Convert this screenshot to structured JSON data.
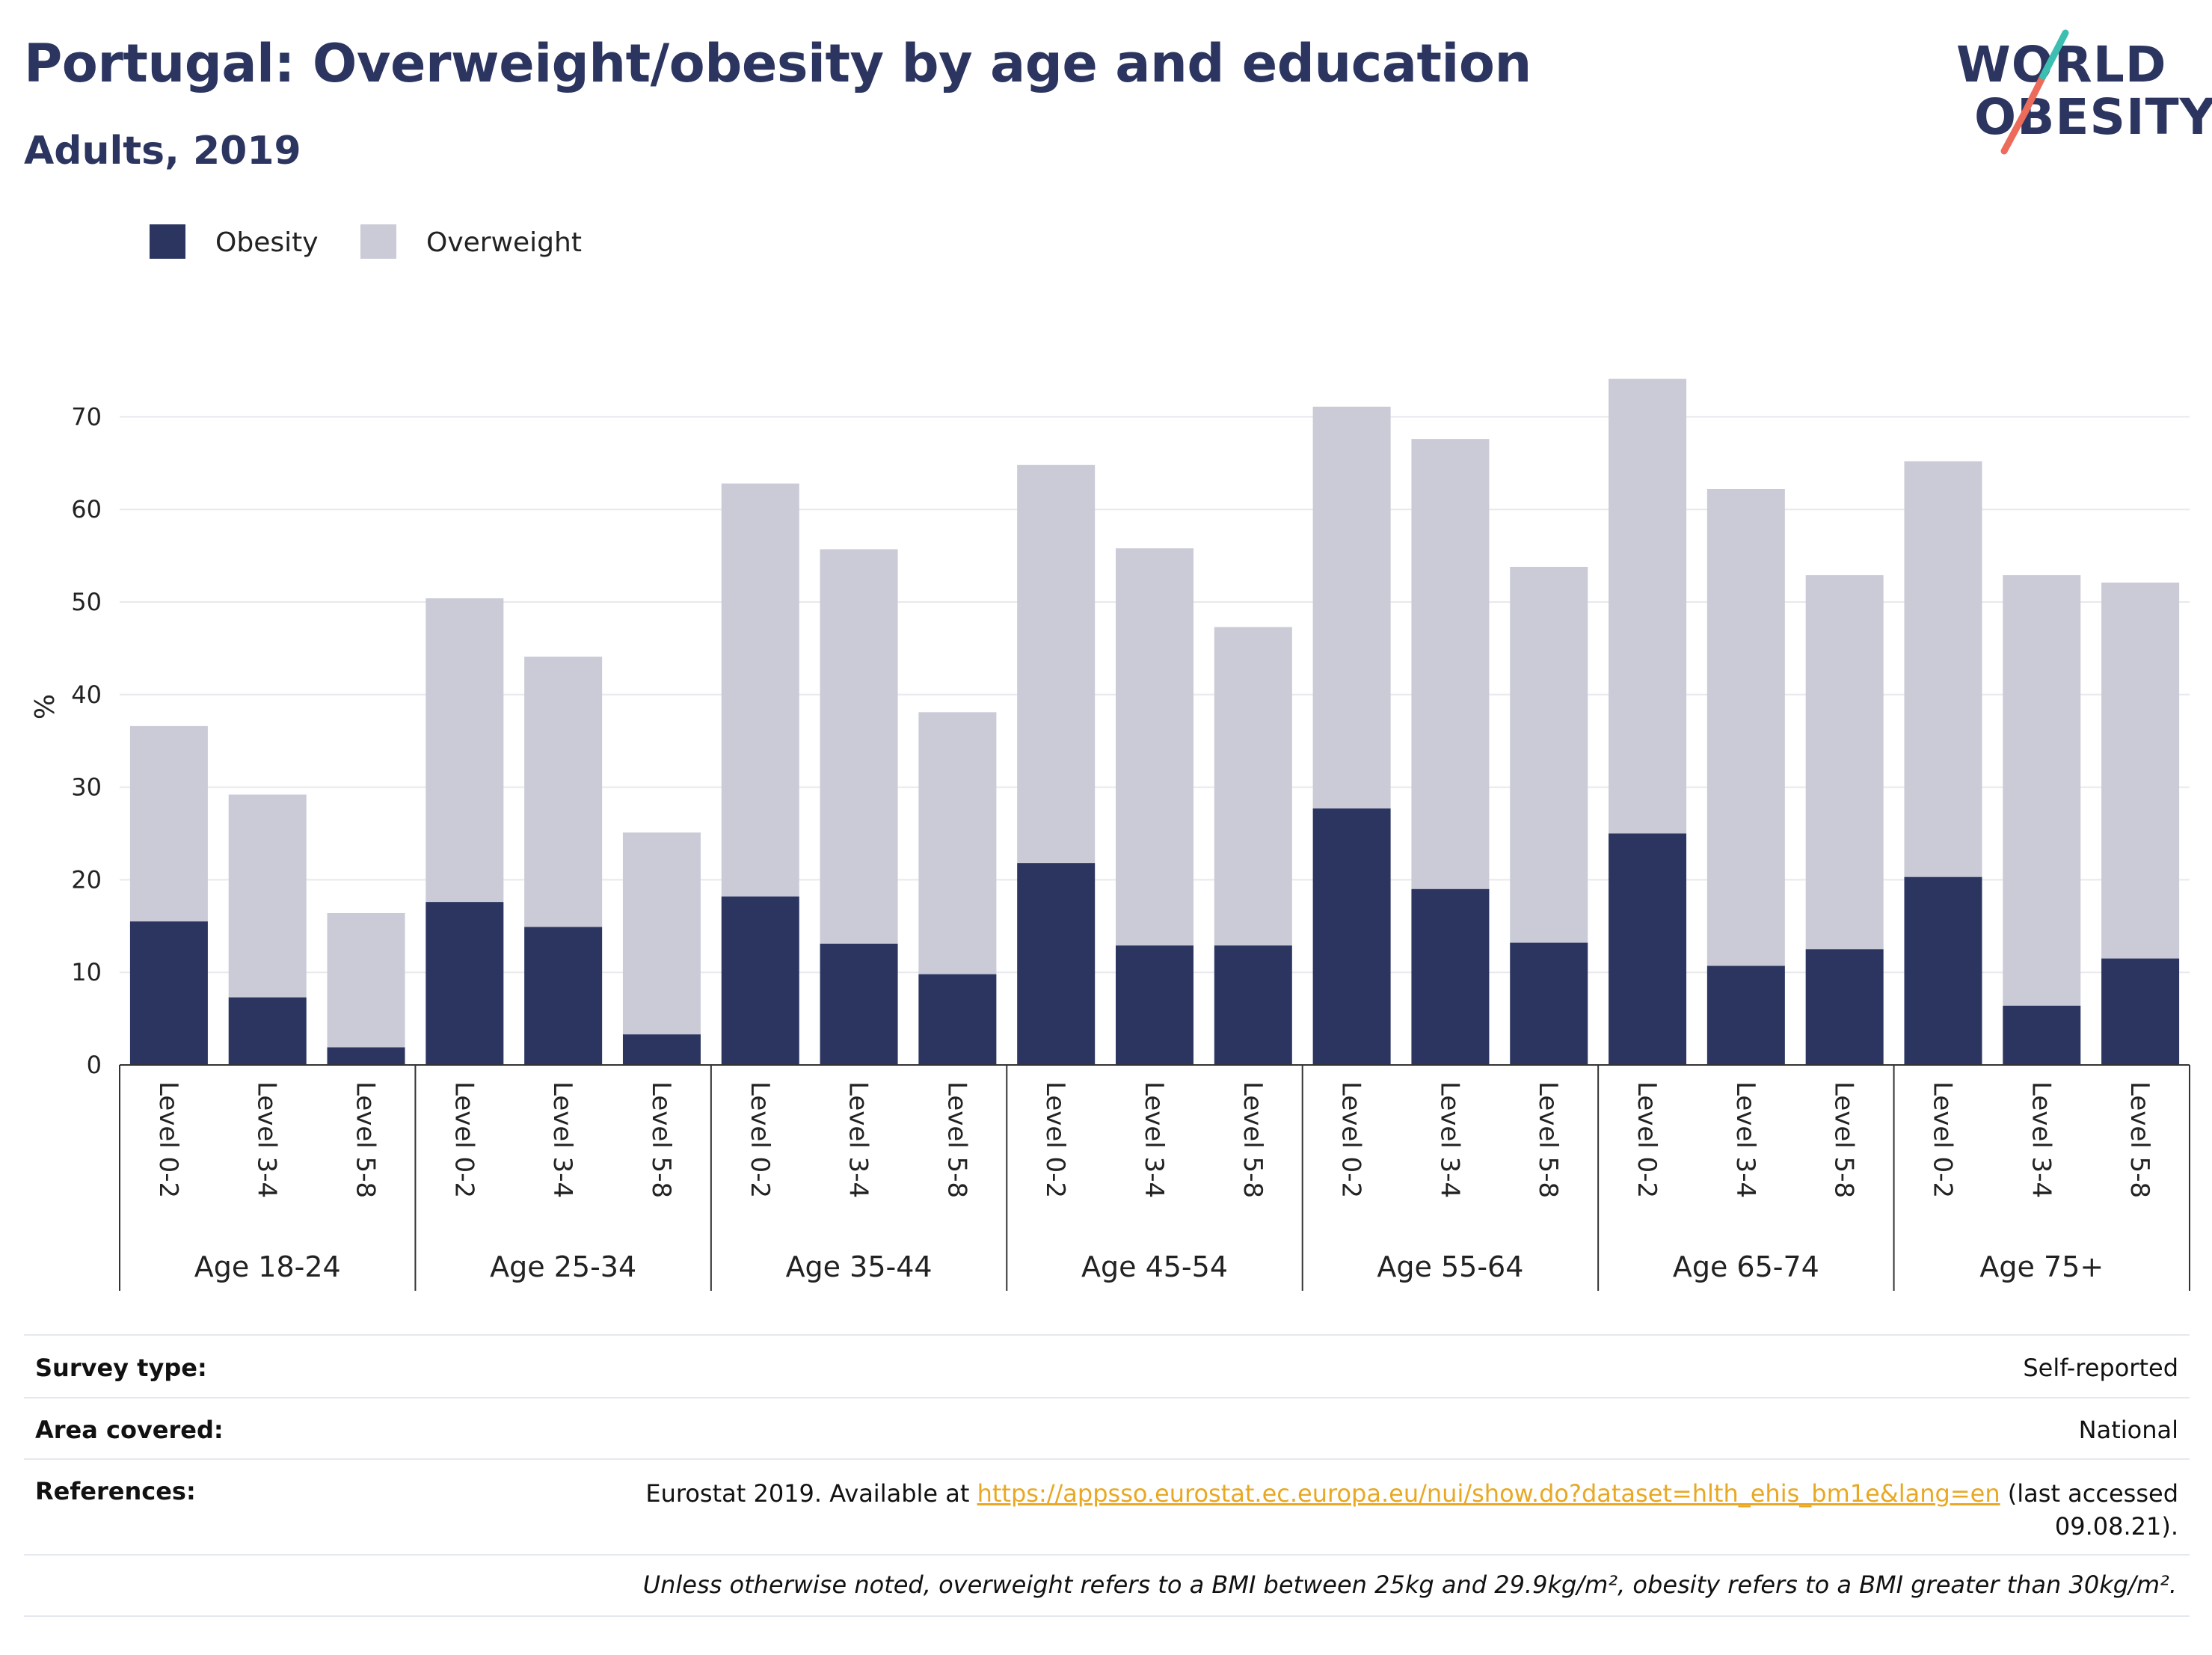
{
  "header": {
    "title": "Portugal: Overweight/obesity by age and education",
    "subtitle": "Adults, 2019"
  },
  "logo": {
    "line1": "WORLD",
    "line2": "OBESITY",
    "slash_colors": [
      "#3cbfb0",
      "#ec6b5a"
    ]
  },
  "colors": {
    "obesity": "#2b3560",
    "overweight": "#cacbd7",
    "grid": "#e8e8ee",
    "axis": "#333333"
  },
  "chart_data": {
    "type": "bar",
    "stacked": true,
    "ylabel": "%",
    "ylim": [
      0,
      75
    ],
    "yticks": [
      0,
      10,
      20,
      30,
      40,
      50,
      60,
      70
    ],
    "grid": true,
    "legend_position": "top-left",
    "groups": [
      "Age 18-24",
      "Age 25-34",
      "Age 35-44",
      "Age 45-54",
      "Age 55-64",
      "Age 65-74",
      "Age 75+"
    ],
    "levels": [
      "Level 0-2",
      "Level 3-4",
      "Level 5-8"
    ],
    "series": [
      {
        "name": "Obesity",
        "values": [
          15.5,
          7.3,
          1.9,
          17.6,
          14.9,
          3.3,
          18.2,
          13.1,
          9.8,
          21.8,
          12.9,
          12.9,
          27.7,
          19.0,
          13.2,
          25.0,
          10.7,
          12.5,
          20.3,
          6.4,
          11.5
        ]
      },
      {
        "name": "Overweight",
        "values": [
          21.1,
          21.9,
          14.5,
          32.8,
          29.2,
          21.8,
          44.6,
          42.6,
          28.3,
          43.0,
          42.9,
          34.4,
          43.4,
          48.6,
          40.6,
          49.1,
          51.5,
          40.4,
          44.9,
          46.5,
          40.6
        ]
      }
    ]
  },
  "footer": {
    "survey_type_label": "Survey type:",
    "survey_type_value": "Self-reported",
    "area_label": "Area covered:",
    "area_value": "National",
    "references_label": "References:",
    "references_prefix": "Eurostat 2019. Available at ",
    "references_link": "https://appsso.eurostat.ec.europa.eu/nui/show.do?dataset=hlth_ehis_bm1e&lang=en",
    "references_suffix_1": " (last accessed",
    "references_suffix_2": "09.08.21).",
    "note": "Unless otherwise noted, overweight refers to a BMI between 25kg and 29.9kg/m², obesity refers to a BMI greater than 30kg/m²."
  }
}
